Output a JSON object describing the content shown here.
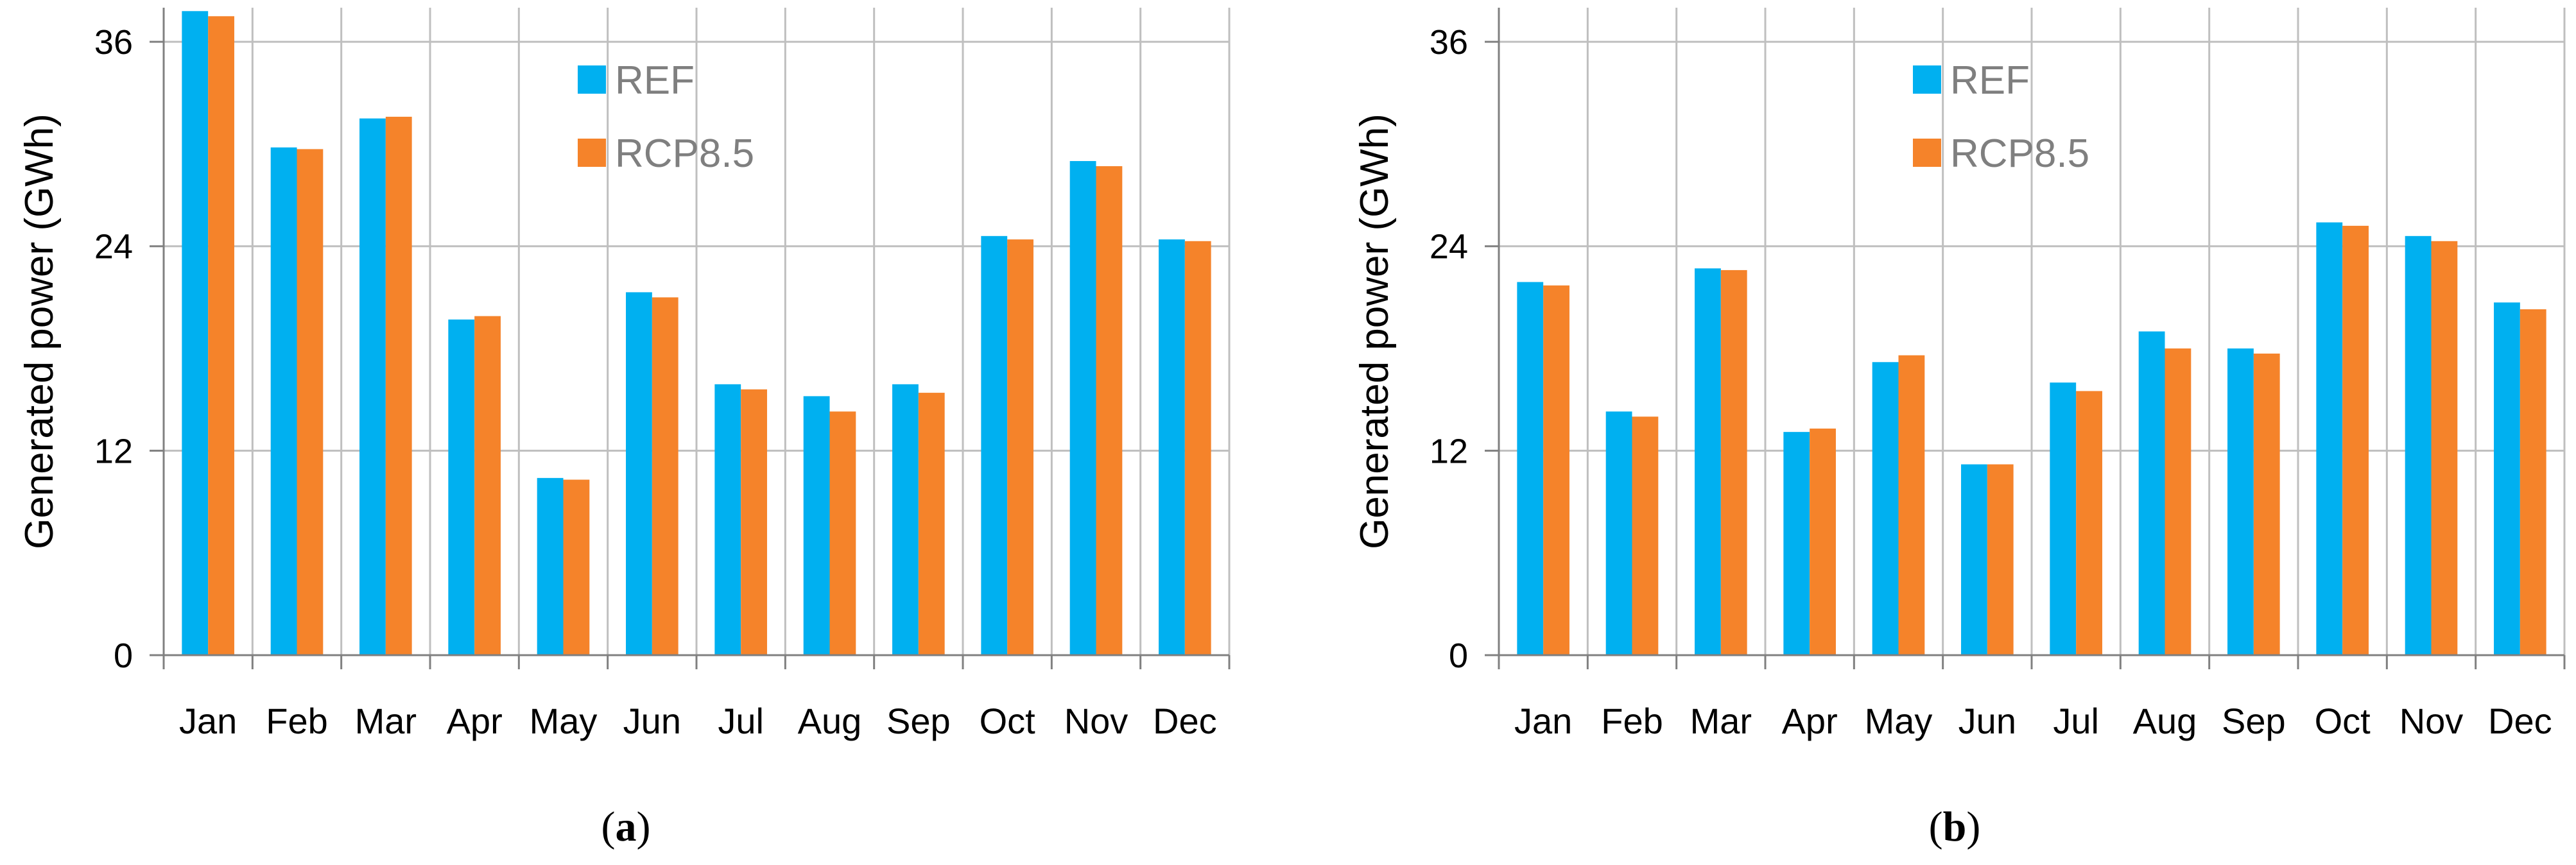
{
  "colors": {
    "ref": "#00b0f0",
    "rcp": "#f5832a"
  },
  "chart_data": [
    {
      "type": "bar",
      "caption": {
        "open": "(",
        "letter": "a",
        "close": ")"
      },
      "ylabel": "Generated power (GWh)",
      "ylim": [
        0,
        38
      ],
      "yticks": [
        0,
        12,
        24,
        36
      ],
      "grid": true,
      "legend_position": "top-center",
      "categories": [
        "Jan",
        "Feb",
        "Mar",
        "Apr",
        "May",
        "Jun",
        "Jul",
        "Aug",
        "Sep",
        "Oct",
        "Nov",
        "Dec"
      ],
      "series": [
        {
          "name": "REF",
          "values": [
            37.8,
            29.8,
            31.5,
            19.7,
            10.4,
            21.3,
            15.9,
            15.2,
            15.9,
            24.6,
            29.0,
            24.4
          ]
        },
        {
          "name": "RCP8.5",
          "values": [
            37.5,
            29.7,
            31.6,
            19.9,
            10.3,
            21.0,
            15.6,
            14.3,
            15.4,
            24.4,
            28.7,
            24.3
          ]
        }
      ]
    },
    {
      "type": "bar",
      "caption": {
        "open": "(",
        "letter": "b",
        "close": ")"
      },
      "ylabel": "Generated power (GWh)",
      "ylim": [
        0,
        38
      ],
      "yticks": [
        0,
        12,
        24,
        36
      ],
      "grid": true,
      "legend_position": "top-center",
      "categories": [
        "Jan",
        "Feb",
        "Mar",
        "Apr",
        "May",
        "Jun",
        "Jul",
        "Aug",
        "Sep",
        "Oct",
        "Nov",
        "Dec"
      ],
      "series": [
        {
          "name": "REF",
          "values": [
            21.9,
            14.3,
            22.7,
            13.1,
            17.2,
            11.2,
            16.0,
            19.0,
            18.0,
            25.4,
            24.6,
            20.7
          ]
        },
        {
          "name": "RCP8.5",
          "values": [
            21.7,
            14.0,
            22.6,
            13.3,
            17.6,
            11.2,
            15.5,
            18.0,
            17.7,
            25.2,
            24.3,
            20.3
          ]
        }
      ]
    }
  ]
}
